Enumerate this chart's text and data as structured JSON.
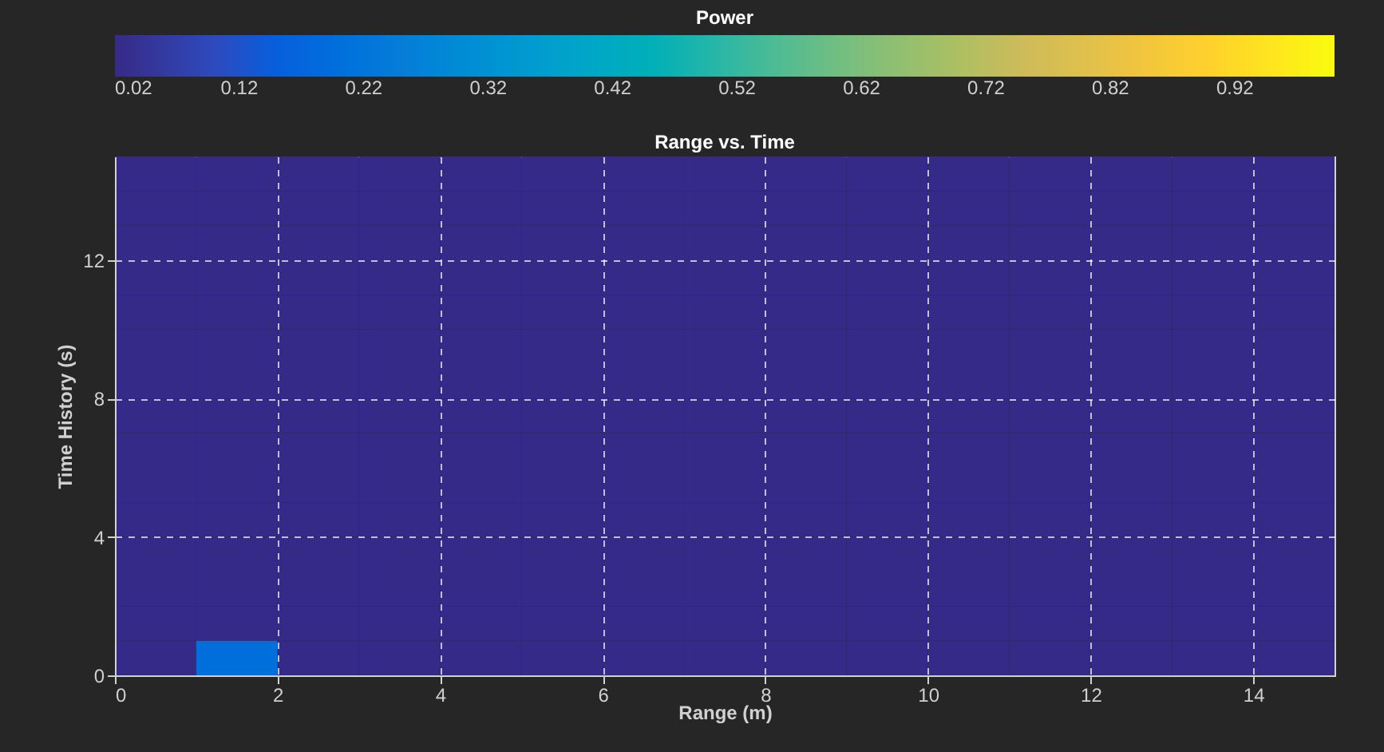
{
  "chart_data": {
    "type": "heatmap",
    "title": "Range vs. Time",
    "xlabel": "Range (m)",
    "ylabel": "Time History (s)",
    "clabel": "Power",
    "xlim": [
      0,
      15
    ],
    "ylim": [
      0,
      15
    ],
    "xticks": [
      0,
      2,
      4,
      6,
      8,
      10,
      12,
      14
    ],
    "yticks": [
      0,
      4,
      8,
      12
    ],
    "clim": [
      0.02,
      1.0
    ],
    "cticks": [
      0.02,
      0.12,
      0.22,
      0.32,
      0.42,
      0.52,
      0.62,
      0.72,
      0.82,
      0.92
    ],
    "grid": true,
    "cells": [
      [
        0.02,
        0.02,
        0.02,
        0.02,
        0.02,
        0.02,
        0.02,
        0.02,
        0.02,
        0.02,
        0.02,
        0.02,
        0.02,
        0.02,
        0.02
      ],
      [
        0.02,
        0.02,
        0.02,
        0.02,
        0.02,
        0.02,
        0.02,
        0.02,
        0.02,
        0.02,
        0.02,
        0.02,
        0.02,
        0.02,
        0.02
      ],
      [
        0.02,
        0.02,
        0.02,
        0.02,
        0.02,
        0.02,
        0.02,
        0.02,
        0.02,
        0.02,
        0.02,
        0.02,
        0.02,
        0.02,
        0.02
      ],
      [
        0.02,
        0.02,
        0.02,
        0.02,
        0.02,
        0.02,
        0.02,
        0.02,
        0.02,
        0.02,
        0.02,
        0.02,
        0.02,
        0.02,
        0.02
      ],
      [
        0.02,
        0.02,
        0.02,
        0.02,
        0.02,
        0.02,
        0.02,
        0.02,
        0.02,
        0.02,
        0.02,
        0.02,
        0.02,
        0.02,
        0.02
      ],
      [
        0.02,
        0.02,
        0.02,
        0.02,
        0.02,
        0.02,
        0.02,
        0.02,
        0.02,
        0.02,
        0.02,
        0.02,
        0.02,
        0.02,
        0.02
      ],
      [
        0.02,
        0.02,
        0.02,
        0.02,
        0.02,
        0.02,
        0.02,
        0.02,
        0.02,
        0.02,
        0.02,
        0.02,
        0.02,
        0.02,
        0.02
      ],
      [
        0.02,
        0.02,
        0.02,
        0.02,
        0.02,
        0.02,
        0.02,
        0.02,
        0.02,
        0.02,
        0.02,
        0.02,
        0.02,
        0.02,
        0.02
      ],
      [
        0.02,
        0.02,
        0.02,
        0.02,
        0.02,
        0.02,
        0.02,
        0.02,
        0.02,
        0.02,
        0.02,
        0.02,
        0.02,
        0.02,
        0.02
      ],
      [
        0.02,
        0.02,
        0.02,
        0.02,
        0.02,
        0.02,
        0.02,
        0.02,
        0.02,
        0.02,
        0.02,
        0.02,
        0.02,
        0.02,
        0.02
      ],
      [
        0.02,
        0.02,
        0.02,
        0.02,
        0.02,
        0.02,
        0.02,
        0.02,
        0.02,
        0.02,
        0.02,
        0.02,
        0.02,
        0.02,
        0.02
      ],
      [
        0.02,
        0.02,
        0.02,
        0.02,
        0.02,
        0.02,
        0.02,
        0.02,
        0.02,
        0.02,
        0.02,
        0.02,
        0.02,
        0.02,
        0.02
      ],
      [
        0.02,
        0.02,
        0.02,
        0.02,
        0.02,
        0.02,
        0.02,
        0.02,
        0.02,
        0.02,
        0.02,
        0.02,
        0.02,
        0.02,
        0.02
      ],
      [
        0.02,
        0.02,
        0.02,
        0.02,
        0.02,
        0.02,
        0.02,
        0.02,
        0.02,
        0.02,
        0.02,
        0.02,
        0.02,
        0.02,
        0.02
      ],
      [
        0.02,
        0.2,
        0.02,
        0.02,
        0.02,
        0.02,
        0.02,
        0.02,
        0.02,
        0.02,
        0.02,
        0.02,
        0.02,
        0.02,
        0.02
      ]
    ]
  }
}
